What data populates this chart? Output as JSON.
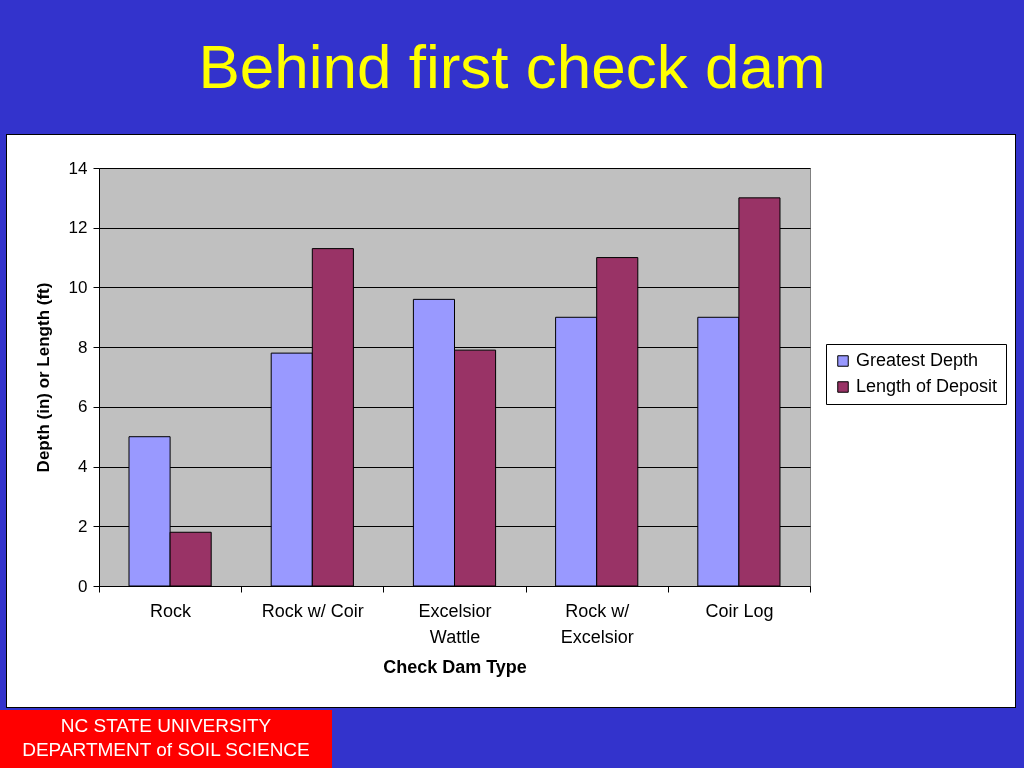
{
  "chart_data": {
    "type": "bar",
    "title": "Behind first check dam",
    "xlabel": "Check Dam Type",
    "ylabel": "Depth (in) or Length (ft)",
    "categories": [
      "Rock",
      "Rock w/ Coir",
      "Excelsior Wattle",
      "Rock w/ Excelsior",
      "Coir Log"
    ],
    "series": [
      {
        "name": "Greatest Depth",
        "color": "#9999ff",
        "values": [
          5.0,
          7.8,
          9.6,
          9.0,
          9.0
        ]
      },
      {
        "name": "Length of Deposit",
        "color": "#993366",
        "values": [
          1.8,
          11.3,
          7.9,
          11.0,
          13.0
        ]
      }
    ],
    "ylim": [
      0,
      14
    ],
    "yticks": [
      0,
      2,
      4,
      6,
      8,
      10,
      12,
      14
    ],
    "grid": "y",
    "legend": "right",
    "annotations": [
      "NC STATE UNIVERSITY",
      "DEPARTMENT of SOIL SCIENCE"
    ]
  }
}
